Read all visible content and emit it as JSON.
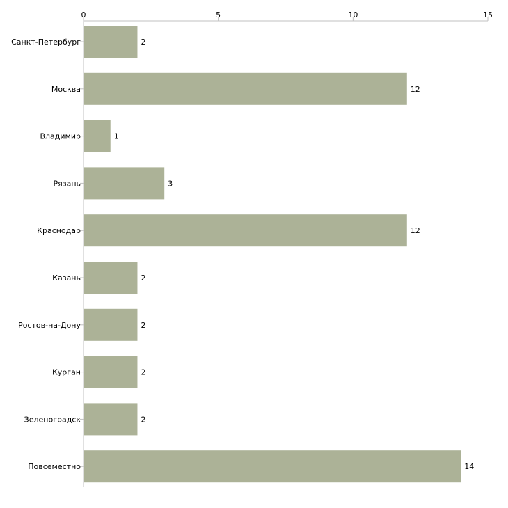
{
  "chart_data": {
    "type": "bar",
    "orientation": "horizontal",
    "title": "",
    "xlabel": "",
    "ylabel": "",
    "categories": [
      "Санкт-Петербург",
      "Москва",
      "Владимир",
      "Рязань",
      "Краснодар",
      "Казань",
      "Ростов-на-Дону",
      "Курган",
      "Зеленоградск",
      "Повсеместно"
    ],
    "values": [
      2,
      12,
      1,
      3,
      12,
      2,
      2,
      2,
      2,
      14
    ],
    "xlim": [
      0,
      15
    ],
    "xticks": [
      0,
      5,
      10,
      15
    ],
    "axis_position": "top",
    "grid": false,
    "bar_color": "#acb297"
  }
}
